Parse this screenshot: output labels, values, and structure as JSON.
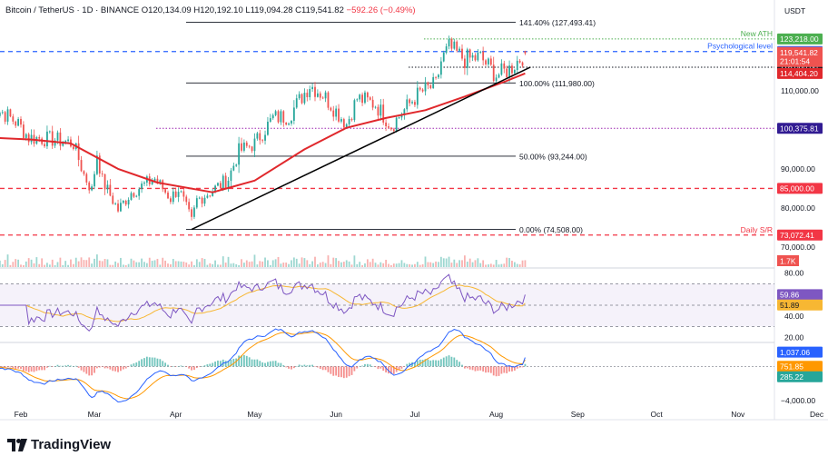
{
  "header": {
    "symbol": "Bitcoin / TetherUS · 1D · BINANCE",
    "open": "O120,134.09",
    "high": "H120,192.10",
    "low": "L119,094.28",
    "close": "C119,541.82",
    "change": "−592.26 (−0.49%)"
  },
  "branding": {
    "logo_text": "TradingView",
    "logo_icon": "tradingview-logo-icon"
  },
  "colors": {
    "up": "#26a69a",
    "down": "#ef5350",
    "ema": "#e0282c",
    "trend": "#000000",
    "rsi": "#7e57c2",
    "rsi_ma": "#f7b733",
    "macd": "#2962ff",
    "signal": "#ff9800",
    "resistance_red": "#f23645",
    "psych": "#2962ff",
    "ath": "#4caf50"
  },
  "chart_data": [
    {
      "type": "candlestick",
      "currency": "USDT",
      "x_ticks": [
        "Feb",
        "Mar",
        "Apr",
        "May",
        "Jun",
        "Jul",
        "Aug",
        "Sep",
        "Oct",
        "Nov",
        "Dec"
      ],
      "y_ticks": [
        "110,000.00",
        "100,000.00",
        "90,000.00",
        "80,000.00",
        "70,000.00"
      ],
      "ylim": [
        70000,
        129000
      ],
      "anchors": [
        [
          "2025-01-20",
          105000
        ],
        [
          "2025-01-25",
          104500
        ],
        [
          "2025-01-31",
          101500
        ],
        [
          "2025-02-04",
          98000
        ],
        [
          "2025-02-14",
          97500
        ],
        [
          "2025-02-21",
          96500
        ],
        [
          "2025-02-25",
          88500
        ],
        [
          "2025-02-28",
          84500
        ],
        [
          "2025-03-02",
          94000
        ],
        [
          "2025-03-04",
          87000
        ],
        [
          "2025-03-10",
          79500
        ],
        [
          "2025-03-15",
          84000
        ],
        [
          "2025-03-24",
          87500
        ],
        [
          "2025-03-30",
          82500
        ],
        [
          "2025-04-02",
          85000
        ],
        [
          "2025-04-07",
          76500
        ],
        [
          "2025-04-09",
          82000
        ],
        [
          "2025-04-15",
          84500
        ],
        [
          "2025-04-21",
          87500
        ],
        [
          "2025-04-25",
          94500
        ],
        [
          "2025-05-01",
          96500
        ],
        [
          "2025-05-08",
          103000
        ],
        [
          "2025-05-14",
          103500
        ],
        [
          "2025-05-22",
          111500
        ],
        [
          "2025-05-27",
          109000
        ],
        [
          "2025-06-05",
          101500
        ],
        [
          "2025-06-09",
          108000
        ],
        [
          "2025-06-12",
          107500
        ],
        [
          "2025-06-16",
          106500
        ],
        [
          "2025-06-22",
          101000
        ],
        [
          "2025-06-30",
          107500
        ],
        [
          "2025-07-03",
          109500
        ],
        [
          "2025-07-09",
          111500
        ],
        [
          "2025-07-11",
          117500
        ],
        [
          "2025-07-14",
          121000
        ],
        [
          "2025-07-20",
          118000
        ],
        [
          "2025-07-26",
          118500
        ],
        [
          "2025-08-01",
          114000
        ],
        [
          "2025-08-03",
          114500
        ],
        [
          "2025-08-06",
          115500
        ],
        [
          "2025-08-09",
          117500
        ],
        [
          "2025-08-12",
          119541.82
        ]
      ],
      "ema_50": [
        [
          "2025-01-20",
          98000
        ],
        [
          "2025-02-05",
          97500
        ],
        [
          "2025-02-20",
          96500
        ],
        [
          "2025-03-10",
          90000
        ],
        [
          "2025-03-25",
          86500
        ],
        [
          "2025-04-15",
          84000
        ],
        [
          "2025-05-01",
          87000
        ],
        [
          "2025-05-20",
          95000
        ],
        [
          "2025-06-05",
          100500
        ],
        [
          "2025-06-20",
          103000
        ],
        [
          "2025-07-05",
          105000
        ],
        [
          "2025-07-20",
          108500
        ],
        [
          "2025-08-05",
          112500
        ],
        [
          "2025-08-12",
          114404.2
        ]
      ],
      "trendline": [
        [
          "2025-04-07",
          74508
        ],
        [
          "2025-08-14",
          116000
        ]
      ],
      "fibonacci": [
        {
          "label": "141.40% (127,493.41)",
          "value": 127493.41
        },
        {
          "label": "100.00% (111,980.00)",
          "value": 111980
        },
        {
          "label": "50.00% (93,244.00)",
          "value": 93244
        },
        {
          "label": "0.00% (74,508.00)",
          "value": 74508
        }
      ],
      "levels": [
        {
          "name": "New ATH",
          "value": 123218,
          "badge": "123,218.00",
          "color": "#4caf50",
          "style": "dotted"
        },
        {
          "name": "Psychological level",
          "value": 120000,
          "badge": "120,000.00",
          "color": "#2962ff",
          "style": "dashed"
        },
        {
          "name": "",
          "value": 116000,
          "badge": "116,000.00",
          "color": "#131722",
          "style": "dotted"
        },
        {
          "name": "",
          "value": 100375.81,
          "badge": "100,375.81",
          "color": "#9c27b0",
          "style": "dotted"
        },
        {
          "name": "",
          "value": 85000,
          "badge": "85,000.00",
          "color": "#f23645",
          "style": "dashed"
        },
        {
          "name": "Daily S/R",
          "value": 73072.41,
          "badge": "73,072.41",
          "color": "#f23645",
          "style": "dashed"
        }
      ],
      "price_badge": {
        "value": 119541.82,
        "text": "119,541.82",
        "countdown": "21:01:54"
      },
      "ema_badge": {
        "value": 114404.2,
        "text": "114,404.20"
      }
    },
    {
      "type": "bar",
      "name_badge": "1.7K",
      "values_description": "volume"
    },
    {
      "type": "line",
      "y_ticks": [
        "80.00",
        "40.00",
        "20.00"
      ],
      "band": [
        30,
        70
      ],
      "ylim": [
        16,
        84
      ],
      "rsi_badge": "59.86",
      "rsi_ma_badge": "51.89",
      "rsi_value": 59.86,
      "rsi_ma_value": 51.89
    },
    {
      "type": "line",
      "y_ticks": [
        "−4,000.00"
      ],
      "ylim": [
        -4300,
        2900
      ],
      "macd_badge": "1,037.06",
      "signal_badge": "751.85",
      "hist_badge": "285.22",
      "macd_value": 1037.06,
      "signal_value": 751.85,
      "hist_value": 285.22
    }
  ]
}
